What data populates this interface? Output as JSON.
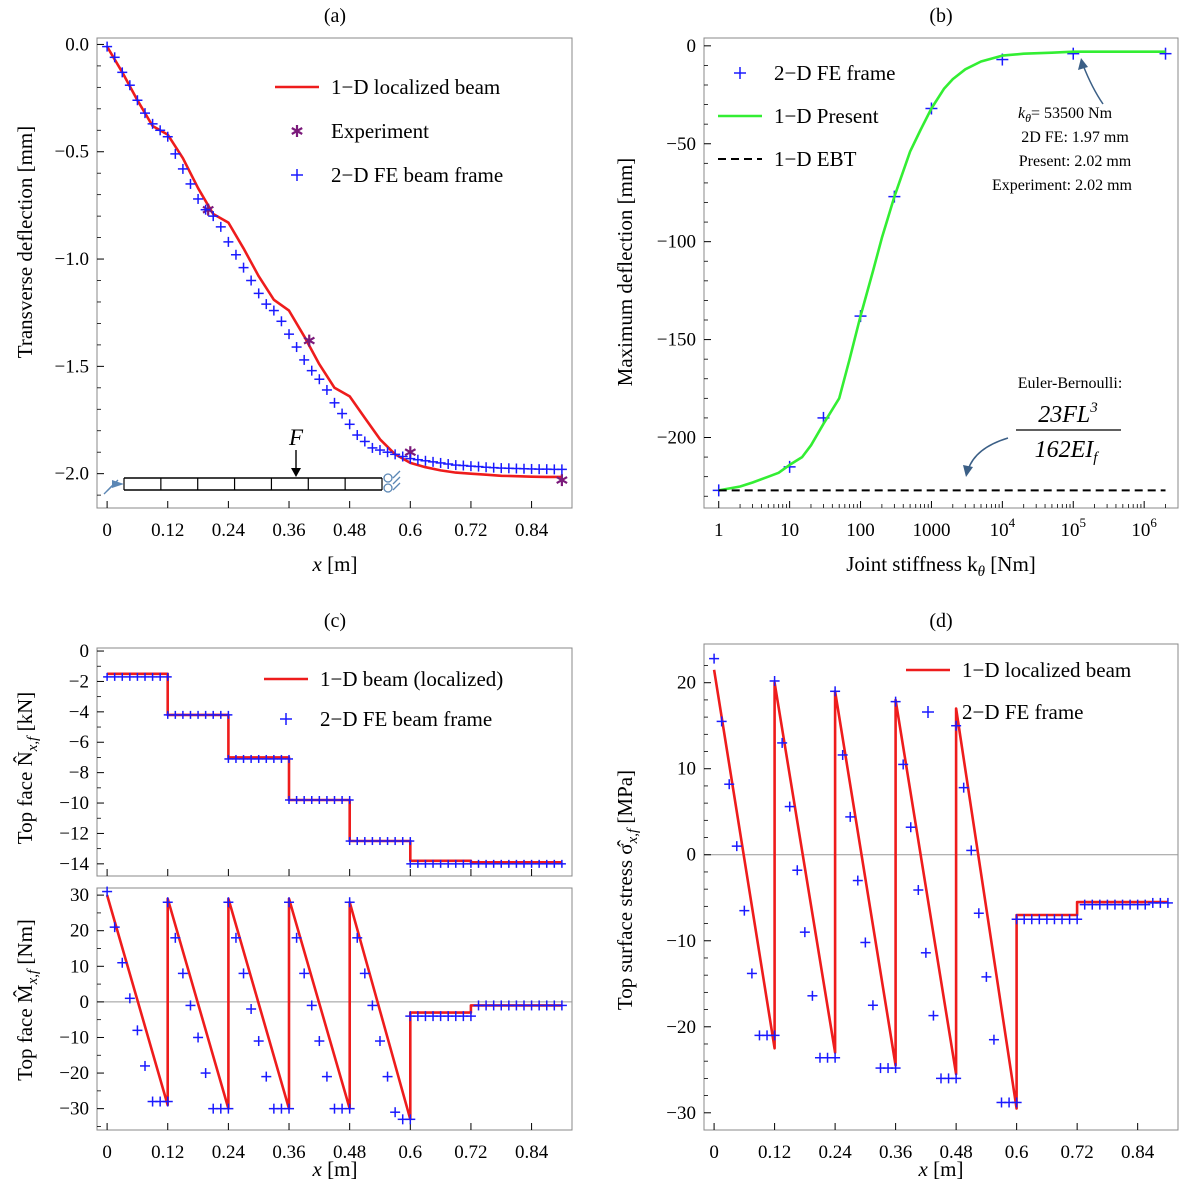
{
  "chart_data": [
    {
      "id": "a",
      "caption": "(a)",
      "type": "line",
      "xlabel": "x [m]",
      "ylabel": "Transverse  deflection  [mm]",
      "xlim": [
        -0.02,
        0.92
      ],
      "ylim": [
        -2.16,
        0.03
      ],
      "xticks": [
        "0",
        "0.12",
        "0.24",
        "0.36",
        "0.48",
        "0.6",
        "0.72",
        "0.84"
      ],
      "yticks": [
        "0.0",
        "−0.5",
        "−1.0",
        "−1.5",
        "−2.0"
      ],
      "legend": [
        "1−D localized beam",
        "Experiment",
        "2−D FE beam frame"
      ],
      "inset_label": "F",
      "series": [
        {
          "name": "1−D localized beam",
          "style": "red-line",
          "x": [
            0,
            0.03,
            0.06,
            0.09,
            0.12,
            0.15,
            0.18,
            0.21,
            0.24,
            0.27,
            0.3,
            0.33,
            0.36,
            0.39,
            0.42,
            0.45,
            0.48,
            0.51,
            0.54,
            0.57,
            0.6,
            0.63,
            0.66,
            0.69,
            0.72,
            0.75,
            0.78,
            0.81,
            0.84,
            0.87,
            0.9
          ],
          "y": [
            -0.01,
            -0.13,
            -0.26,
            -0.38,
            -0.42,
            -0.53,
            -0.67,
            -0.79,
            -0.83,
            -0.95,
            -1.08,
            -1.19,
            -1.24,
            -1.36,
            -1.49,
            -1.6,
            -1.64,
            -1.74,
            -1.84,
            -1.91,
            -1.95,
            -1.97,
            -1.985,
            -1.995,
            -2.0,
            -2.005,
            -2.01,
            -2.012,
            -2.014,
            -2.015,
            -2.015
          ]
        },
        {
          "name": "Experiment",
          "style": "purple-star",
          "x": [
            0.2,
            0.4,
            0.6,
            0.9
          ],
          "y": [
            -0.77,
            -1.38,
            -1.9,
            -2.03
          ]
        },
        {
          "name": "2−D FE beam frame",
          "style": "blue-plus",
          "x": [
            0,
            0.015,
            0.03,
            0.045,
            0.06,
            0.075,
            0.09,
            0.105,
            0.12,
            0.135,
            0.15,
            0.165,
            0.18,
            0.195,
            0.21,
            0.225,
            0.24,
            0.255,
            0.27,
            0.285,
            0.3,
            0.315,
            0.33,
            0.345,
            0.36,
            0.375,
            0.39,
            0.405,
            0.42,
            0.435,
            0.45,
            0.465,
            0.48,
            0.495,
            0.51,
            0.525,
            0.54,
            0.555,
            0.57,
            0.585,
            0.6,
            0.615,
            0.63,
            0.645,
            0.66,
            0.675,
            0.69,
            0.705,
            0.72,
            0.735,
            0.75,
            0.765,
            0.78,
            0.795,
            0.81,
            0.825,
            0.84,
            0.855,
            0.87,
            0.885,
            0.9
          ],
          "y": [
            -0.01,
            -0.06,
            -0.13,
            -0.19,
            -0.26,
            -0.32,
            -0.37,
            -0.4,
            -0.43,
            -0.51,
            -0.58,
            -0.65,
            -0.72,
            -0.77,
            -0.8,
            -0.85,
            -0.92,
            -0.98,
            -1.04,
            -1.1,
            -1.16,
            -1.21,
            -1.24,
            -1.29,
            -1.35,
            -1.41,
            -1.47,
            -1.52,
            -1.56,
            -1.61,
            -1.67,
            -1.72,
            -1.77,
            -1.82,
            -1.85,
            -1.88,
            -1.89,
            -1.9,
            -1.91,
            -1.92,
            -1.93,
            -1.935,
            -1.94,
            -1.945,
            -1.95,
            -1.955,
            -1.96,
            -1.962,
            -1.965,
            -1.967,
            -1.97,
            -1.972,
            -1.974,
            -1.975,
            -1.976,
            -1.977,
            -1.978,
            -1.979,
            -1.979,
            -1.98,
            -1.98
          ]
        }
      ]
    },
    {
      "id": "b",
      "caption": "(b)",
      "type": "line",
      "xlabel": "Joint stiffness k",
      "xlabel_sub": "θ",
      "xlabel_tail": " [Nm]",
      "ylabel": "Maximum  deflection  [mm]",
      "xscale": "log",
      "xlim": [
        0.62,
        3000000
      ],
      "ylim": [
        -236,
        4
      ],
      "xticks": [
        {
          "v": 1,
          "t": "1"
        },
        {
          "v": 10,
          "t": "10"
        },
        {
          "v": 100,
          "t": "100"
        },
        {
          "v": 1000,
          "t": "1000"
        },
        {
          "v": 10000,
          "t": "10",
          "sup": "4"
        },
        {
          "v": 100000,
          "t": "10",
          "sup": "5"
        },
        {
          "v": 1000000,
          "t": "10",
          "sup": "6"
        }
      ],
      "yticks": [
        "0",
        "−50",
        "−100",
        "−150",
        "−200"
      ],
      "legend": [
        "2−D FE frame",
        "1−D Present",
        "1−D EBT"
      ],
      "annotation": {
        "ktheta_k": "k",
        "ktheta_sub": "θ",
        "ktheta_tail": "= 53500 Nm",
        "lines": [
          "2D FE: 1.97 mm",
          "Present: 2.02 mm",
          "Experiment: 2.02 mm"
        ]
      },
      "ebt_annotation": {
        "title": "Euler-Bernoulli:",
        "numerator": "23FL",
        "numerator_sup": "3",
        "denominator": "162EI",
        "denominator_sub": "f"
      },
      "series": [
        {
          "name": "2−D FE frame",
          "style": "blue-plus",
          "x": [
            1,
            10,
            30,
            100,
            300,
            1000,
            10000,
            100000,
            2000000
          ],
          "y": [
            -227,
            -215,
            -190,
            -138,
            -77,
            -32,
            -7,
            -4,
            -4
          ]
        },
        {
          "name": "1−D Present",
          "style": "green-line",
          "x": [
            1,
            2,
            3,
            5,
            7,
            10,
            15,
            20,
            30,
            50,
            70,
            100,
            150,
            200,
            300,
            500,
            700,
            1000,
            1500,
            2000,
            3000,
            5000,
            10000,
            20000,
            50000,
            100000,
            300000,
            1000000,
            2000000
          ],
          "y": [
            -227,
            -225,
            -223,
            -220,
            -218,
            -214,
            -210,
            -204,
            -193,
            -180,
            -160,
            -138,
            -115,
            -98,
            -77,
            -54,
            -43,
            -32,
            -22,
            -17,
            -12,
            -8,
            -5,
            -4,
            -3.5,
            -3,
            -3,
            -3,
            -3
          ]
        },
        {
          "name": "1−D EBT",
          "style": "black-dash",
          "x": [
            1,
            2000000
          ],
          "y": [
            -227,
            -227
          ]
        }
      ]
    },
    {
      "id": "c-top",
      "caption": "(c)",
      "type": "line",
      "ylabel": "Top face N̂",
      "ylabel_sub": "x,f",
      "ylabel_tail": " [kN]",
      "xlim": [
        -0.02,
        0.92
      ],
      "ylim": [
        -14.8,
        0.2
      ],
      "yticks": [
        "0",
        "−2",
        "−4",
        "−6",
        "−8",
        "−10",
        "−12",
        "−14"
      ],
      "legend": [
        "1−D beam (localized)",
        "2−D FE beam frame"
      ],
      "series": [
        {
          "name": "1−D beam (localized)",
          "style": "red-line",
          "x": [
            0,
            0.12,
            0.12,
            0.24,
            0.24,
            0.36,
            0.36,
            0.48,
            0.48,
            0.6,
            0.6,
            0.72,
            0.72,
            0.9
          ],
          "y": [
            -1.5,
            -1.5,
            -4.2,
            -4.2,
            -7.0,
            -7.0,
            -9.8,
            -9.8,
            -12.5,
            -12.5,
            -13.8,
            -13.8,
            -13.9,
            -13.9
          ]
        },
        {
          "name": "2−D FE beam frame",
          "style": "blue-plus",
          "x": [
            0,
            0.015,
            0.03,
            0.045,
            0.06,
            0.075,
            0.09,
            0.105,
            0.12,
            0.12,
            0.135,
            0.15,
            0.165,
            0.18,
            0.195,
            0.21,
            0.225,
            0.24,
            0.24,
            0.255,
            0.27,
            0.285,
            0.3,
            0.315,
            0.33,
            0.345,
            0.36,
            0.36,
            0.375,
            0.39,
            0.405,
            0.42,
            0.435,
            0.45,
            0.465,
            0.48,
            0.48,
            0.495,
            0.51,
            0.525,
            0.54,
            0.555,
            0.57,
            0.585,
            0.6,
            0.6,
            0.615,
            0.63,
            0.645,
            0.66,
            0.675,
            0.69,
            0.705,
            0.72,
            0.735,
            0.75,
            0.765,
            0.78,
            0.795,
            0.81,
            0.825,
            0.84,
            0.855,
            0.87,
            0.885,
            0.9
          ],
          "y": [
            -1.7,
            -1.7,
            -1.7,
            -1.7,
            -1.7,
            -1.7,
            -1.7,
            -1.7,
            -1.7,
            -4.2,
            -4.2,
            -4.2,
            -4.2,
            -4.2,
            -4.2,
            -4.2,
            -4.2,
            -4.2,
            -7.1,
            -7.1,
            -7.1,
            -7.1,
            -7.1,
            -7.1,
            -7.1,
            -7.1,
            -7.1,
            -9.8,
            -9.8,
            -9.8,
            -9.8,
            -9.8,
            -9.8,
            -9.8,
            -9.8,
            -9.8,
            -12.5,
            -12.5,
            -12.5,
            -12.5,
            -12.5,
            -12.5,
            -12.5,
            -12.5,
            -12.5,
            -14.0,
            -14.0,
            -14.0,
            -14.0,
            -14.0,
            -14.0,
            -14.0,
            -14.0,
            -14.0,
            -14.0,
            -14.0,
            -14.0,
            -14.0,
            -14.0,
            -14.0,
            -14.0,
            -14.0,
            -14.0,
            -14.0,
            -14.0,
            -14.0
          ]
        }
      ]
    },
    {
      "id": "c-bottom",
      "type": "line",
      "xlabel": "x [m]",
      "ylabel": "Top face M̂",
      "ylabel_sub": "x,f",
      "ylabel_tail": " [Nm]",
      "xlim": [
        -0.02,
        0.92
      ],
      "ylim": [
        -36,
        32
      ],
      "xticks": [
        "0",
        "0.12",
        "0.24",
        "0.36",
        "0.48",
        "0.6",
        "0.72",
        "0.84"
      ],
      "yticks": [
        "30",
        "20",
        "10",
        "0",
        "−10",
        "−20",
        "−30"
      ],
      "series": [
        {
          "name": "1−D beam (localized)",
          "style": "red-line",
          "x": [
            0,
            0.12,
            0.12,
            0.24,
            0.24,
            0.36,
            0.36,
            0.48,
            0.48,
            0.6,
            0.6,
            0.72,
            0.72,
            0.9
          ],
          "y": [
            30,
            -29,
            29,
            -30,
            29,
            -30,
            29,
            -30,
            28,
            -33,
            -3,
            -3,
            -1,
            -1
          ]
        },
        {
          "name": "2−D FE beam frame",
          "style": "blue-plus",
          "x": [
            0,
            0.015,
            0.03,
            0.045,
            0.06,
            0.075,
            0.09,
            0.105,
            0.12,
            0.12,
            0.135,
            0.15,
            0.165,
            0.18,
            0.195,
            0.21,
            0.225,
            0.24,
            0.24,
            0.255,
            0.27,
            0.285,
            0.3,
            0.315,
            0.33,
            0.345,
            0.36,
            0.36,
            0.375,
            0.39,
            0.405,
            0.42,
            0.435,
            0.45,
            0.465,
            0.48,
            0.48,
            0.495,
            0.51,
            0.525,
            0.54,
            0.555,
            0.57,
            0.585,
            0.6,
            0.6,
            0.615,
            0.63,
            0.645,
            0.66,
            0.675,
            0.69,
            0.705,
            0.72,
            0.735,
            0.75,
            0.765,
            0.78,
            0.795,
            0.81,
            0.825,
            0.84,
            0.855,
            0.87,
            0.885,
            0.9
          ],
          "y": [
            31,
            21,
            11,
            1,
            -8,
            -18,
            -28,
            -28,
            -28,
            28,
            18,
            8,
            -1,
            -10,
            -20,
            -30,
            -30,
            -30,
            28,
            18,
            8,
            -2,
            -11,
            -21,
            -30,
            -30,
            -30,
            28,
            18,
            8,
            -1,
            -11,
            -21,
            -30,
            -30,
            -30,
            28,
            18,
            8,
            -1,
            -11,
            -21,
            -31,
            -33,
            -33,
            -4,
            -4,
            -4,
            -4,
            -4,
            -4,
            -4,
            -4,
            -4,
            -1,
            -1,
            -1,
            -1,
            -1,
            -1,
            -1,
            -1,
            -1,
            -1,
            -1,
            -1
          ]
        }
      ]
    },
    {
      "id": "d",
      "caption": "(d)",
      "type": "line",
      "xlabel": "x [m]",
      "ylabel": "Top surface stress σ̂",
      "ylabel_sub": "x,f",
      "ylabel_tail": "  [MPa]",
      "xlim": [
        -0.02,
        0.92
      ],
      "ylim": [
        -32,
        24.5
      ],
      "xticks": [
        "0",
        "0.12",
        "0.24",
        "0.36",
        "0.48",
        "0.6",
        "0.72",
        "0.84"
      ],
      "yticks": [
        "20",
        "10",
        "0",
        "−10",
        "−20",
        "−30"
      ],
      "legend": [
        "1−D localized beam",
        "2−D FE frame"
      ],
      "series": [
        {
          "name": "1−D localized beam",
          "style": "red-line",
          "x": [
            0,
            0.12,
            0.12,
            0.24,
            0.24,
            0.36,
            0.36,
            0.48,
            0.48,
            0.6,
            0.6,
            0.72,
            0.72,
            0.9
          ],
          "y": [
            21.5,
            -22.5,
            20,
            -23,
            19,
            -24.5,
            18,
            -25.5,
            17,
            -29.5,
            -7,
            -7,
            -5.5,
            -5.5
          ]
        },
        {
          "name": "2−D FE frame",
          "style": "blue-plus",
          "x": [
            0,
            0.015,
            0.03,
            0.045,
            0.06,
            0.075,
            0.09,
            0.105,
            0.12,
            0.12,
            0.135,
            0.15,
            0.165,
            0.18,
            0.195,
            0.21,
            0.225,
            0.24,
            0.24,
            0.255,
            0.27,
            0.285,
            0.3,
            0.315,
            0.33,
            0.345,
            0.36,
            0.36,
            0.375,
            0.39,
            0.405,
            0.42,
            0.435,
            0.45,
            0.465,
            0.48,
            0.48,
            0.495,
            0.51,
            0.525,
            0.54,
            0.555,
            0.57,
            0.585,
            0.6,
            0.6,
            0.615,
            0.63,
            0.645,
            0.66,
            0.675,
            0.69,
            0.705,
            0.72,
            0.735,
            0.75,
            0.765,
            0.78,
            0.795,
            0.81,
            0.825,
            0.84,
            0.855,
            0.87,
            0.885,
            0.9
          ],
          "y": [
            22.8,
            15.5,
            8.2,
            1.0,
            -6.5,
            -13.8,
            -21,
            -21,
            -21,
            20.2,
            13,
            5.6,
            -1.8,
            -9,
            -16.4,
            -23.6,
            -23.6,
            -23.6,
            19,
            11.6,
            4.4,
            -3,
            -10.2,
            -17.5,
            -24.8,
            -24.8,
            -24.8,
            17.8,
            10.5,
            3.2,
            -4.1,
            -11.4,
            -18.7,
            -26,
            -26,
            -26,
            15,
            7.8,
            0.5,
            -6.8,
            -14.2,
            -21.5,
            -28.8,
            -28.8,
            -28.8,
            -7.5,
            -7.5,
            -7.5,
            -7.5,
            -7.5,
            -7.5,
            -7.5,
            -7.5,
            -7.5,
            -5.8,
            -5.8,
            -5.8,
            -5.8,
            -5.8,
            -5.8,
            -5.8,
            -5.8,
            -5.8,
            -5.6,
            -5.6,
            -5.6
          ]
        }
      ]
    }
  ],
  "colors": {
    "red": "#ee1c1c",
    "blue": "#1a1aff",
    "purple": "#7b1a7b",
    "green": "#33ee33",
    "black": "#000000",
    "inset_blue": "#5b87b5"
  }
}
